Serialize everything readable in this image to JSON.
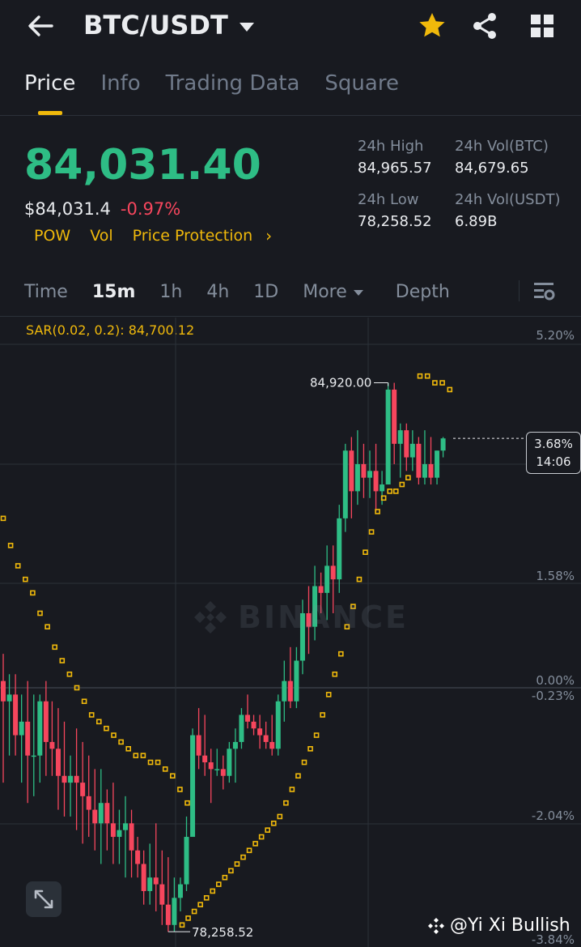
{
  "header": {
    "pair": "BTC/USDT",
    "icons": [
      "back-arrow-icon",
      "dropdown-caret-icon",
      "star-icon",
      "share-icon",
      "grid-icon"
    ],
    "favorite_color": "#f0b90b"
  },
  "tabs": [
    {
      "label": "Price",
      "active": true
    },
    {
      "label": "Info",
      "active": false
    },
    {
      "label": "Trading Data",
      "active": false
    },
    {
      "label": "Square",
      "active": false
    }
  ],
  "price": {
    "last": "84,031.40",
    "fiat": "$84,031.4",
    "change": "-0.97%",
    "up_color": "#2ebd85",
    "down_color": "#f6465d"
  },
  "tags": [
    "POW",
    "Vol",
    "Price Protection"
  ],
  "stats": {
    "high_label": "24h High",
    "high_value": "84,965.57",
    "low_label": "24h Low",
    "low_value": "78,258.52",
    "vol_btc_label": "24h Vol(BTC)",
    "vol_btc_value": "84,679.65",
    "vol_usdt_label": "24h Vol(USDT)",
    "vol_usdt_value": "6.89B"
  },
  "intervals": [
    {
      "label": "Time",
      "active": false
    },
    {
      "label": "15m",
      "active": true
    },
    {
      "label": "1h",
      "active": false
    },
    {
      "label": "4h",
      "active": false
    },
    {
      "label": "1D",
      "active": false
    },
    {
      "label": "More",
      "active": false
    },
    {
      "label": "Depth",
      "active": false
    }
  ],
  "indicator": "SAR(0.02, 0.2): 84,700.12",
  "axis_labels": [
    "5.20%",
    "3.68%",
    "1.58%",
    "0.00%",
    "-0.23%",
    "-2.04%",
    "-3.84%"
  ],
  "countdown": {
    "pct": "3.68%",
    "time": "14:06"
  },
  "brand_watermark": "BINANCE",
  "credit": "@Yi Xi Bullish",
  "chart_data": {
    "type": "candlestick",
    "interval": "15m",
    "high_marker": "84,920.00",
    "low_marker": "78,258.52",
    "ohlc_pct": [
      [
        0.1,
        0.5,
        -1.4,
        -0.2
      ],
      [
        -0.2,
        0.2,
        -1.0,
        -0.1
      ],
      [
        -0.1,
        0.2,
        -1.0,
        -0.7
      ],
      [
        -0.7,
        -0.1,
        -1.4,
        -0.5
      ],
      [
        -0.5,
        0.1,
        -1.7,
        -1.0
      ],
      [
        -1.0,
        -0.1,
        -1.6,
        -1.0
      ],
      [
        -1.0,
        -0.1,
        -1.4,
        -0.2
      ],
      [
        -0.2,
        0.1,
        -1.3,
        -0.8
      ],
      [
        -0.8,
        -0.2,
        -1.3,
        -0.9
      ],
      [
        -0.9,
        -0.3,
        -1.8,
        -1.3
      ],
      [
        -1.3,
        -0.5,
        -1.9,
        -1.4
      ],
      [
        -1.4,
        -1.0,
        -1.9,
        -1.3
      ],
      [
        -1.3,
        -0.6,
        -2.1,
        -1.4
      ],
      [
        -1.4,
        -0.8,
        -2.3,
        -1.6
      ],
      [
        -1.6,
        -1.0,
        -2.2,
        -1.8
      ],
      [
        -1.8,
        -1.2,
        -2.4,
        -2.0
      ],
      [
        -2.0,
        -1.2,
        -2.6,
        -1.7
      ],
      [
        -1.7,
        -1.5,
        -2.4,
        -2.0
      ],
      [
        -2.0,
        -1.4,
        -2.6,
        -2.2
      ],
      [
        -2.2,
        -1.8,
        -2.6,
        -2.1
      ],
      [
        -2.1,
        -1.6,
        -2.8,
        -2.0
      ],
      [
        -2.0,
        -1.8,
        -2.8,
        -2.4
      ],
      [
        -2.4,
        -2.2,
        -2.8,
        -2.6
      ],
      [
        -2.6,
        -2.4,
        -3.2,
        -3.0
      ],
      [
        -3.0,
        -2.3,
        -3.2,
        -2.8
      ],
      [
        -2.8,
        -2.0,
        -3.3,
        -2.9
      ],
      [
        -2.9,
        -2.4,
        -3.5,
        -3.2
      ],
      [
        -3.2,
        -2.5,
        -3.6,
        -3.5
      ],
      [
        -3.5,
        -2.8,
        -3.6,
        -3.1
      ],
      [
        -3.1,
        -2.8,
        -3.3,
        -2.9
      ],
      [
        -2.9,
        -1.9,
        -3.0,
        -2.2
      ],
      [
        -2.2,
        -0.6,
        -2.2,
        -0.7
      ],
      [
        -0.7,
        -0.3,
        -1.2,
        -1.0
      ],
      [
        -1.0,
        -0.4,
        -1.3,
        -1.1
      ],
      [
        -1.1,
        -0.9,
        -1.7,
        -1.2
      ],
      [
        -1.2,
        -0.9,
        -1.3,
        -1.2
      ],
      [
        -1.2,
        -1.0,
        -1.5,
        -1.3
      ],
      [
        -1.3,
        -0.8,
        -1.4,
        -0.9
      ],
      [
        -0.9,
        -0.6,
        -1.4,
        -0.8
      ],
      [
        -0.8,
        -0.3,
        -0.9,
        -0.4
      ],
      [
        -0.4,
        -0.1,
        -0.6,
        -0.5
      ],
      [
        -0.5,
        -0.4,
        -0.7,
        -0.6
      ],
      [
        -0.6,
        -0.4,
        -0.9,
        -0.7
      ],
      [
        -0.7,
        -0.5,
        -0.9,
        -0.8
      ],
      [
        -0.8,
        -0.4,
        -1.0,
        -0.9
      ],
      [
        -0.9,
        -0.1,
        -1.0,
        -0.2
      ],
      [
        -0.2,
        0.4,
        -0.5,
        0.1
      ],
      [
        0.1,
        0.6,
        -0.3,
        -0.2
      ],
      [
        -0.2,
        0.6,
        -0.3,
        0.4
      ],
      [
        0.4,
        1.3,
        0.2,
        1.1
      ],
      [
        1.1,
        1.5,
        0.5,
        0.9
      ],
      [
        0.9,
        1.8,
        0.7,
        1.5
      ],
      [
        1.5,
        1.7,
        1.1,
        1.4
      ],
      [
        1.4,
        2.1,
        1.0,
        1.8
      ],
      [
        1.8,
        2.1,
        1.1,
        1.6
      ],
      [
        1.6,
        2.7,
        1.4,
        2.5
      ],
      [
        2.5,
        3.6,
        2.3,
        3.5
      ],
      [
        3.5,
        3.7,
        2.5,
        2.9
      ],
      [
        2.9,
        3.8,
        2.7,
        3.3
      ],
      [
        3.3,
        3.6,
        2.8,
        3.1
      ],
      [
        3.1,
        3.5,
        2.8,
        3.2
      ],
      [
        3.2,
        3.6,
        2.6,
        2.9
      ],
      [
        2.9,
        3.2,
        2.7,
        3.0
      ],
      [
        3.0,
        4.5,
        3.0,
        4.4
      ],
      [
        4.4,
        4.5,
        3.3,
        3.6
      ],
      [
        3.6,
        3.9,
        3.1,
        3.8
      ],
      [
        3.8,
        3.9,
        3.2,
        3.4
      ],
      [
        3.4,
        3.8,
        3.2,
        3.6
      ],
      [
        3.6,
        3.7,
        3.0,
        3.1
      ],
      [
        3.1,
        3.8,
        3.0,
        3.3
      ],
      [
        3.3,
        3.7,
        3.0,
        3.1
      ],
      [
        3.1,
        3.5,
        3.0,
        3.5
      ],
      [
        3.5,
        3.7,
        3.4,
        3.68
      ]
    ],
    "sar_pct": [
      2.5,
      2.1,
      1.8,
      1.6,
      1.4,
      1.1,
      0.9,
      0.6,
      0.4,
      0.2,
      0.0,
      -0.2,
      -0.4,
      -0.5,
      -0.6,
      -0.7,
      -0.8,
      -0.9,
      -1.0,
      -1.0,
      -1.1,
      -1.1,
      -1.2,
      -1.3,
      -1.5,
      -1.7,
      -3.5,
      -3.4,
      -3.3,
      -3.2,
      -3.1,
      -3.0,
      -2.9,
      -2.8,
      -2.7,
      -2.6,
      -2.5,
      -2.4,
      -2.3,
      -2.2,
      -2.1,
      -2.0,
      -1.9,
      -1.7,
      -1.5,
      -1.3,
      -1.1,
      -0.9,
      -0.7,
      -0.4,
      -0.1,
      0.2,
      0.5,
      0.9,
      1.2,
      1.6,
      2.0,
      2.3,
      2.6,
      2.8,
      2.9,
      2.9,
      3.0,
      3.1,
      4.6,
      4.6,
      4.5,
      4.5,
      4.4
    ]
  }
}
